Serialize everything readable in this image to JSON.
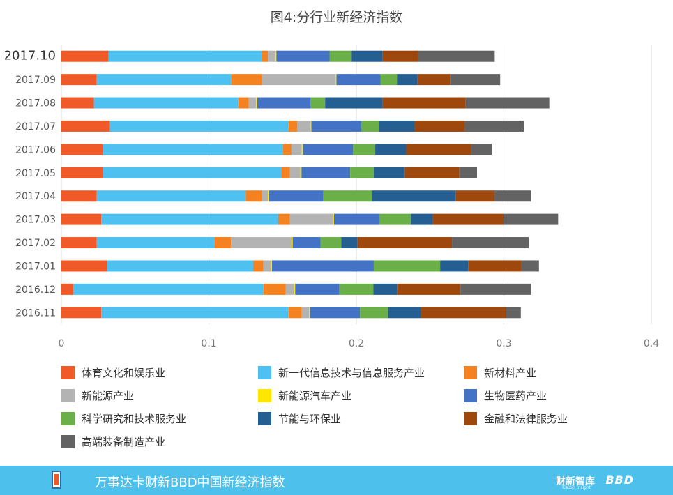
{
  "chart_data": {
    "type": "bar",
    "orientation": "horizontal",
    "stacked": true,
    "title": "图4:分行业新经济指数",
    "categories": [
      "2017.10",
      "2017.09",
      "2017.08",
      "2017.07",
      "2017.06",
      "2017.05",
      "2017.04",
      "2017.03",
      "2017.02",
      "2017.01",
      "2016.12",
      "2016.11"
    ],
    "xlim": [
      0,
      0.4
    ],
    "xticks": [
      "0",
      "0.1",
      "0.2",
      "0.3",
      "0.4"
    ],
    "grid": true,
    "legend_position": "bottom",
    "series": [
      {
        "name": "体育文化和娱乐业",
        "color": "#f05a28",
        "values": [
          0.032,
          0.024,
          0.022,
          0.033,
          0.028,
          0.028,
          0.024,
          0.027,
          0.024,
          0.031,
          0.008,
          0.027
        ]
      },
      {
        "name": "新一代信息技术与信息服务产业",
        "color": "#4fc1f0",
        "values": [
          0.104,
          0.091,
          0.098,
          0.121,
          0.122,
          0.121,
          0.101,
          0.12,
          0.08,
          0.099,
          0.129,
          0.127
        ]
      },
      {
        "name": "新材料产业",
        "color": "#f58220",
        "values": [
          0.004,
          0.021,
          0.007,
          0.006,
          0.006,
          0.006,
          0.011,
          0.008,
          0.011,
          0.007,
          0.015,
          0.009
        ]
      },
      {
        "name": "新能源产业",
        "color": "#b3b3b3",
        "values": [
          0.005,
          0.05,
          0.005,
          0.009,
          0.007,
          0.007,
          0.004,
          0.029,
          0.041,
          0.005,
          0.006,
          0.005
        ]
      },
      {
        "name": "新能源汽车产业",
        "color": "#ffe600",
        "values": [
          0.0008,
          0.0005,
          0.0008,
          0.0005,
          0.0008,
          0.0008,
          0.0005,
          0.0008,
          0.0008,
          0.0008,
          0.0005,
          0.0005
        ]
      },
      {
        "name": "生物医药产业",
        "color": "#4472c4",
        "values": [
          0.036,
          0.03,
          0.036,
          0.034,
          0.034,
          0.033,
          0.037,
          0.031,
          0.019,
          0.069,
          0.03,
          0.034
        ]
      },
      {
        "name": "科学研究和技术服务业",
        "color": "#6aaf47",
        "values": [
          0.015,
          0.011,
          0.01,
          0.012,
          0.015,
          0.016,
          0.033,
          0.021,
          0.014,
          0.045,
          0.023,
          0.019
        ]
      },
      {
        "name": "节能与环保业",
        "color": "#255e91",
        "values": [
          0.021,
          0.014,
          0.039,
          0.024,
          0.021,
          0.021,
          0.057,
          0.015,
          0.011,
          0.019,
          0.016,
          0.022
        ]
      },
      {
        "name": "金融和法律服务业",
        "color": "#9e480e",
        "values": [
          0.024,
          0.022,
          0.056,
          0.034,
          0.044,
          0.037,
          0.026,
          0.048,
          0.064,
          0.036,
          0.043,
          0.058
        ]
      },
      {
        "name": "高端装备制造产业",
        "color": "#636363",
        "values": [
          0.052,
          0.034,
          0.057,
          0.04,
          0.014,
          0.012,
          0.025,
          0.037,
          0.052,
          0.012,
          0.048,
          0.01
        ]
      }
    ]
  },
  "footer": {
    "text": "万事达卡财新BBD中国新经济指数",
    "brand": "财新智库",
    "brand_sub": "Caixin Insight",
    "brand2": "BBD"
  }
}
